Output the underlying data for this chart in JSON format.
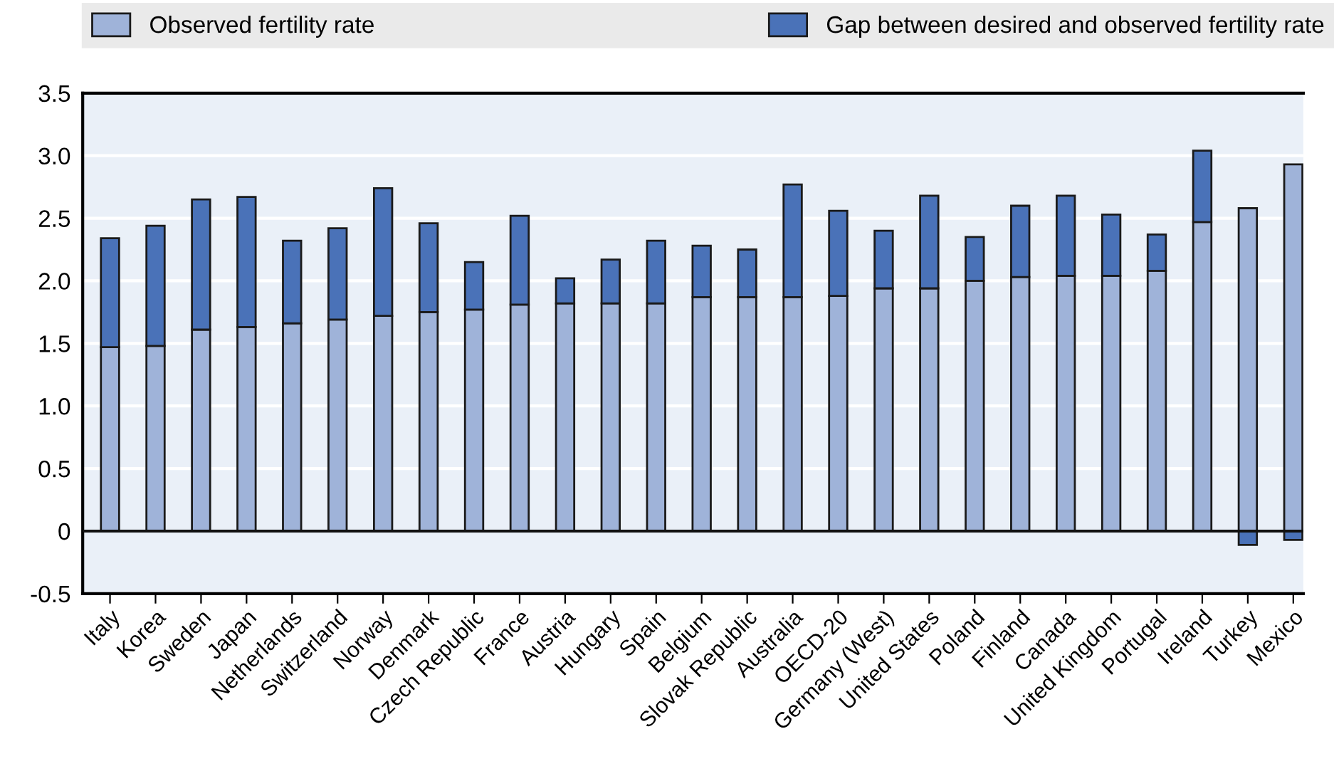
{
  "chart_data": {
    "type": "bar",
    "stacked": true,
    "categories": [
      "Italy",
      "Korea",
      "Sweden",
      "Japan",
      "Netherlands",
      "Switzerland",
      "Norway",
      "Denmark",
      "Czech Republic",
      "France",
      "Austria",
      "Hungary",
      "Spain",
      "Belgium",
      "Slovak Republic",
      "Australia",
      "OECD-20",
      "Germany (West)",
      "United States",
      "Poland",
      "Finland",
      "Canada",
      "United Kingdom",
      "Portugal",
      "Ireland",
      "Turkey",
      "Mexico"
    ],
    "series": [
      {
        "name": "Observed fertility rate",
        "color": "#9fb3d9",
        "values": [
          1.47,
          1.48,
          1.61,
          1.63,
          1.66,
          1.69,
          1.72,
          1.75,
          1.77,
          1.81,
          1.82,
          1.82,
          1.82,
          1.87,
          1.87,
          1.87,
          1.88,
          1.94,
          1.94,
          2.0,
          2.03,
          2.04,
          2.04,
          2.08,
          2.47,
          2.58,
          2.93
        ]
      },
      {
        "name": "Gap between desired and observed fertility rate",
        "color": "#4a72b8",
        "values": [
          0.87,
          0.96,
          1.04,
          1.04,
          0.66,
          0.73,
          1.02,
          0.71,
          0.38,
          0.71,
          0.2,
          0.35,
          0.5,
          0.41,
          0.38,
          0.9,
          0.68,
          0.46,
          0.74,
          0.35,
          0.57,
          0.64,
          0.49,
          0.29,
          0.57,
          -0.11,
          -0.07
        ]
      }
    ],
    "ylim": [
      -0.5,
      3.5
    ],
    "yticks": [
      {
        "value": -0.5,
        "label": "-0.5"
      },
      0,
      0.5,
      {
        "value": 1,
        "label": "1.0"
      },
      1.5,
      {
        "value": 2,
        "label": "2.0"
      },
      2.5,
      {
        "value": 3,
        "label": "3.0"
      },
      3.5
    ],
    "grid": "y",
    "legend": "top"
  }
}
